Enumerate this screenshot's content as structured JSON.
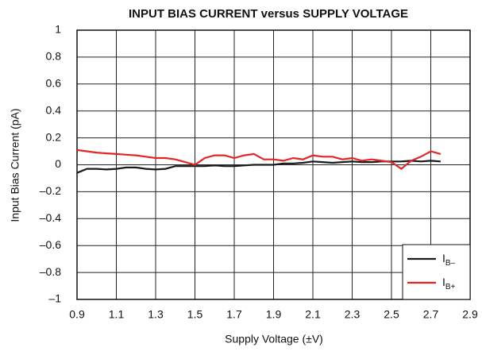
{
  "chart_data": {
    "type": "line",
    "title": "INPUT BIAS CURRENT versus SUPPLY VOLTAGE",
    "x_label": "Supply Voltage (±V)",
    "y_label": "Input Bias Current (pA)",
    "x": [
      0.9,
      0.95,
      1.0,
      1.05,
      1.1,
      1.15,
      1.2,
      1.25,
      1.3,
      1.35,
      1.4,
      1.45,
      1.5,
      1.55,
      1.6,
      1.65,
      1.7,
      1.75,
      1.8,
      1.85,
      1.9,
      1.95,
      2.0,
      2.05,
      2.1,
      2.15,
      2.2,
      2.25,
      2.3,
      2.35,
      2.4,
      2.45,
      2.5,
      2.55,
      2.6,
      2.65,
      2.7,
      2.75
    ],
    "series": [
      {
        "name": "IB–",
        "color": "#1a1a1a",
        "values": [
          -0.06,
          -0.03,
          -0.03,
          -0.035,
          -0.03,
          -0.02,
          -0.02,
          -0.03,
          -0.035,
          -0.03,
          -0.01,
          -0.01,
          -0.01,
          -0.01,
          -0.005,
          -0.01,
          -0.01,
          -0.005,
          0,
          0,
          0,
          0.01,
          0.01,
          0.015,
          0.025,
          0.02,
          0.015,
          0.02,
          0.025,
          0.02,
          0.02,
          0.025,
          0.025,
          0.025,
          0.03,
          0.025,
          0.03,
          0.025
        ]
      },
      {
        "name": "IB+",
        "color": "#e32526",
        "values": [
          0.11,
          0.1,
          0.09,
          0.085,
          0.08,
          0.075,
          0.07,
          0.06,
          0.05,
          0.05,
          0.04,
          0.02,
          0.0,
          0.05,
          0.07,
          0.07,
          0.05,
          0.07,
          0.08,
          0.04,
          0.04,
          0.03,
          0.05,
          0.04,
          0.07,
          0.06,
          0.06,
          0.04,
          0.05,
          0.03,
          0.04,
          0.03,
          0.02,
          -0.03,
          0.03,
          0.06,
          0.1,
          0.08
        ]
      }
    ],
    "xlim": [
      0.9,
      2.9
    ],
    "xticks": [
      0.9,
      1.1,
      1.3,
      1.5,
      1.7,
      1.9,
      2.1,
      2.3,
      2.5,
      2.7,
      2.9
    ],
    "ylim": [
      -1,
      1
    ],
    "yticks": [
      {
        "value": -1,
        "label": "–1"
      },
      {
        "value": -0.8,
        "label": "–0.8"
      },
      {
        "value": -0.6,
        "label": "–0.6"
      },
      {
        "value": -0.4,
        "label": "–0.4"
      },
      {
        "value": -0.2,
        "label": "–0.2"
      },
      0,
      0.2,
      0.4,
      0.6,
      0.8,
      1
    ],
    "grid": true,
    "legend": "lower right"
  }
}
